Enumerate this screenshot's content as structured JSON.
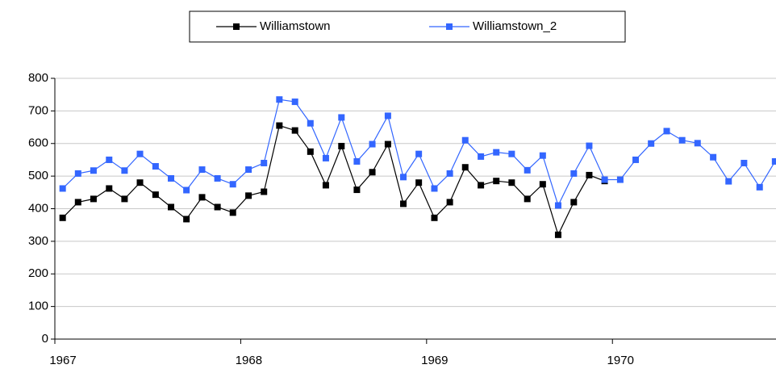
{
  "chart_data": {
    "type": "line",
    "x": [
      1967.042,
      1967.125,
      1967.208,
      1967.292,
      1967.375,
      1967.458,
      1967.542,
      1967.625,
      1967.708,
      1967.792,
      1967.875,
      1967.958,
      1968.042,
      1968.125,
      1968.208,
      1968.292,
      1968.375,
      1968.458,
      1968.542,
      1968.625,
      1968.708,
      1968.792,
      1968.875,
      1968.958,
      1969.042,
      1969.125,
      1969.208,
      1969.292,
      1969.375,
      1969.458,
      1969.542,
      1969.625,
      1969.708,
      1969.792,
      1969.875,
      1969.958,
      1970.042,
      1970.125,
      1970.208,
      1970.292,
      1970.375,
      1970.458,
      1970.542,
      1970.625,
      1970.708,
      1970.792,
      1970.875
    ],
    "series": [
      {
        "name": "Williamstown",
        "color": "#000000",
        "values": [
          372,
          420,
          430,
          462,
          430,
          480,
          443,
          405,
          368,
          435,
          405,
          388,
          440,
          452,
          655,
          640,
          575,
          472,
          592,
          458,
          512,
          598,
          415,
          480,
          372,
          420,
          527,
          472,
          485,
          480,
          430,
          475,
          320,
          420,
          503,
          485,
          null,
          null,
          null,
          null,
          null,
          null,
          null,
          null,
          null,
          null,
          null
        ]
      },
      {
        "name": "Williamstown_2",
        "color": "#3366ff",
        "values": [
          462,
          508,
          517,
          550,
          517,
          568,
          530,
          493,
          457,
          520,
          493,
          475,
          520,
          540,
          735,
          728,
          662,
          555,
          680,
          545,
          598,
          685,
          497,
          568,
          462,
          508,
          610,
          560,
          573,
          568,
          518,
          563,
          410,
          508,
          593,
          489,
          489,
          550,
          600,
          638,
          610,
          601,
          558,
          484,
          540,
          466,
          545
        ]
      }
    ],
    "xlim": [
      1967,
      1970.88
    ],
    "xticks": [
      1967,
      1968,
      1969,
      1970
    ],
    "ylim": [
      0,
      800
    ],
    "yticks": [
      0,
      100,
      200,
      300,
      400,
      500,
      600,
      700,
      800
    ],
    "grid": true,
    "legend": "top"
  }
}
